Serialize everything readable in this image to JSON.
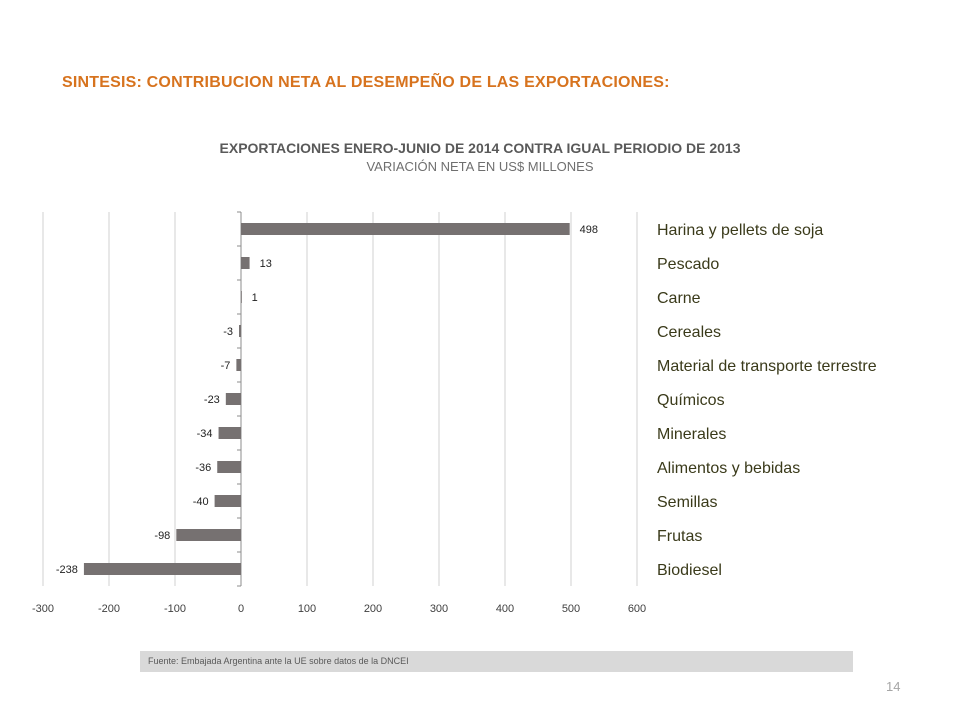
{
  "slide": {
    "title": "SINTESIS: CONTRIBUCION NETA AL DESEMPEÑO DE LAS EXPORTACIONES:",
    "source": "Fuente: Embajada  Argentina ante la UE sobre datos de la DNCEI",
    "page_number": "14"
  },
  "chart_data": {
    "type": "bar",
    "orientation": "horizontal",
    "title": "EXPORTACIONES ENERO-JUNIO DE 2014 CONTRA IGUAL PERIODIO DE 2013",
    "subtitle": "VARIACIÓN NETA EN US$ MILLONES",
    "categories": [
      "Harina y pellets de soja",
      "Pescado",
      "Carne",
      "Cereales",
      "Material de transporte terrestre",
      "Químicos",
      "Minerales",
      "Alimentos y bebidas",
      "Semillas",
      "Frutas",
      "Biodiesel"
    ],
    "values": [
      498,
      13,
      1,
      -3,
      -7,
      -23,
      -34,
      -36,
      -40,
      -98,
      -238
    ],
    "data_labels": [
      "498",
      "13",
      "1",
      "-3",
      "-7",
      "-23",
      "-34",
      "-36",
      "-40",
      "-98",
      "-238"
    ],
    "xlim": [
      -300,
      600
    ],
    "xticks": [
      -300,
      -200,
      -100,
      0,
      100,
      200,
      300,
      400,
      500,
      600
    ],
    "xlabel": "",
    "ylabel": "",
    "grid": "vertical",
    "bar_color": "#767171",
    "gridline_color": "#d0d0d0"
  }
}
